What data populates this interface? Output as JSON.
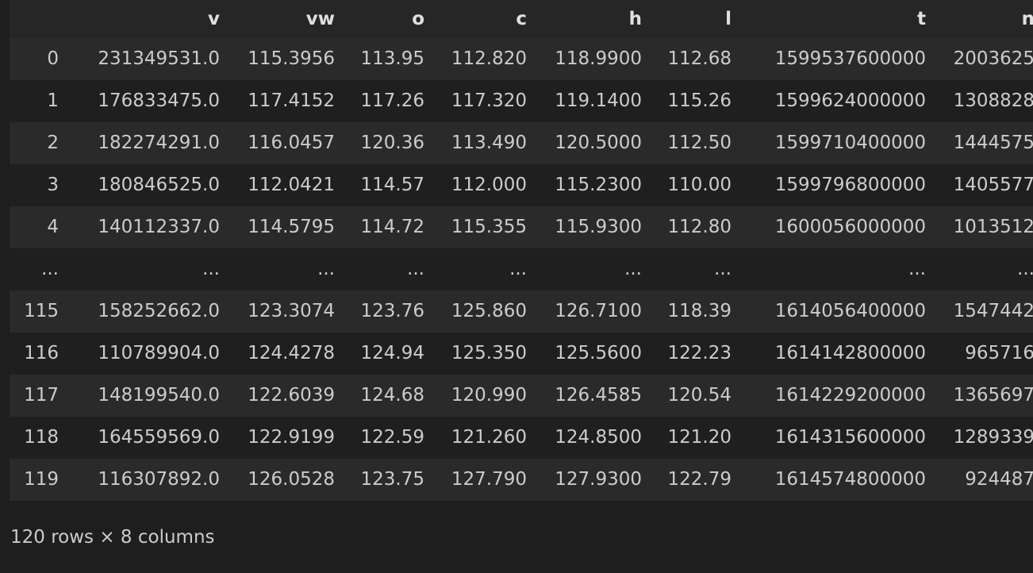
{
  "table": {
    "columns": [
      "",
      "v",
      "vw",
      "o",
      "c",
      "h",
      "l",
      "t",
      "n"
    ],
    "rows": [
      [
        "0",
        "231349531.0",
        "115.3956",
        "113.95",
        "112.820",
        "118.9900",
        "112.68",
        "1599537600000",
        "2003625"
      ],
      [
        "1",
        "176833475.0",
        "117.4152",
        "117.26",
        "117.320",
        "119.1400",
        "115.26",
        "1599624000000",
        "1308828"
      ],
      [
        "2",
        "182274291.0",
        "116.0457",
        "120.36",
        "113.490",
        "120.5000",
        "112.50",
        "1599710400000",
        "1444575"
      ],
      [
        "3",
        "180846525.0",
        "112.0421",
        "114.57",
        "112.000",
        "115.2300",
        "110.00",
        "1599796800000",
        "1405577"
      ],
      [
        "4",
        "140112337.0",
        "114.5795",
        "114.72",
        "115.355",
        "115.9300",
        "112.80",
        "1600056000000",
        "1013512"
      ],
      [
        "...",
        "...",
        "...",
        "...",
        "...",
        "...",
        "...",
        "...",
        "..."
      ],
      [
        "115",
        "158252662.0",
        "123.3074",
        "123.76",
        "125.860",
        "126.7100",
        "118.39",
        "1614056400000",
        "1547442"
      ],
      [
        "116",
        "110789904.0",
        "124.4278",
        "124.94",
        "125.350",
        "125.5600",
        "122.23",
        "1614142800000",
        "965716"
      ],
      [
        "117",
        "148199540.0",
        "122.6039",
        "124.68",
        "120.990",
        "126.4585",
        "120.54",
        "1614229200000",
        "1365697"
      ],
      [
        "118",
        "164559569.0",
        "122.9199",
        "122.59",
        "121.260",
        "124.8500",
        "121.20",
        "1614315600000",
        "1289339"
      ],
      [
        "119",
        "116307892.0",
        "126.0528",
        "123.75",
        "127.790",
        "127.9300",
        "122.79",
        "1614574800000",
        "924487"
      ]
    ]
  },
  "footer": {
    "shape_text": "120 rows × 8 columns"
  }
}
